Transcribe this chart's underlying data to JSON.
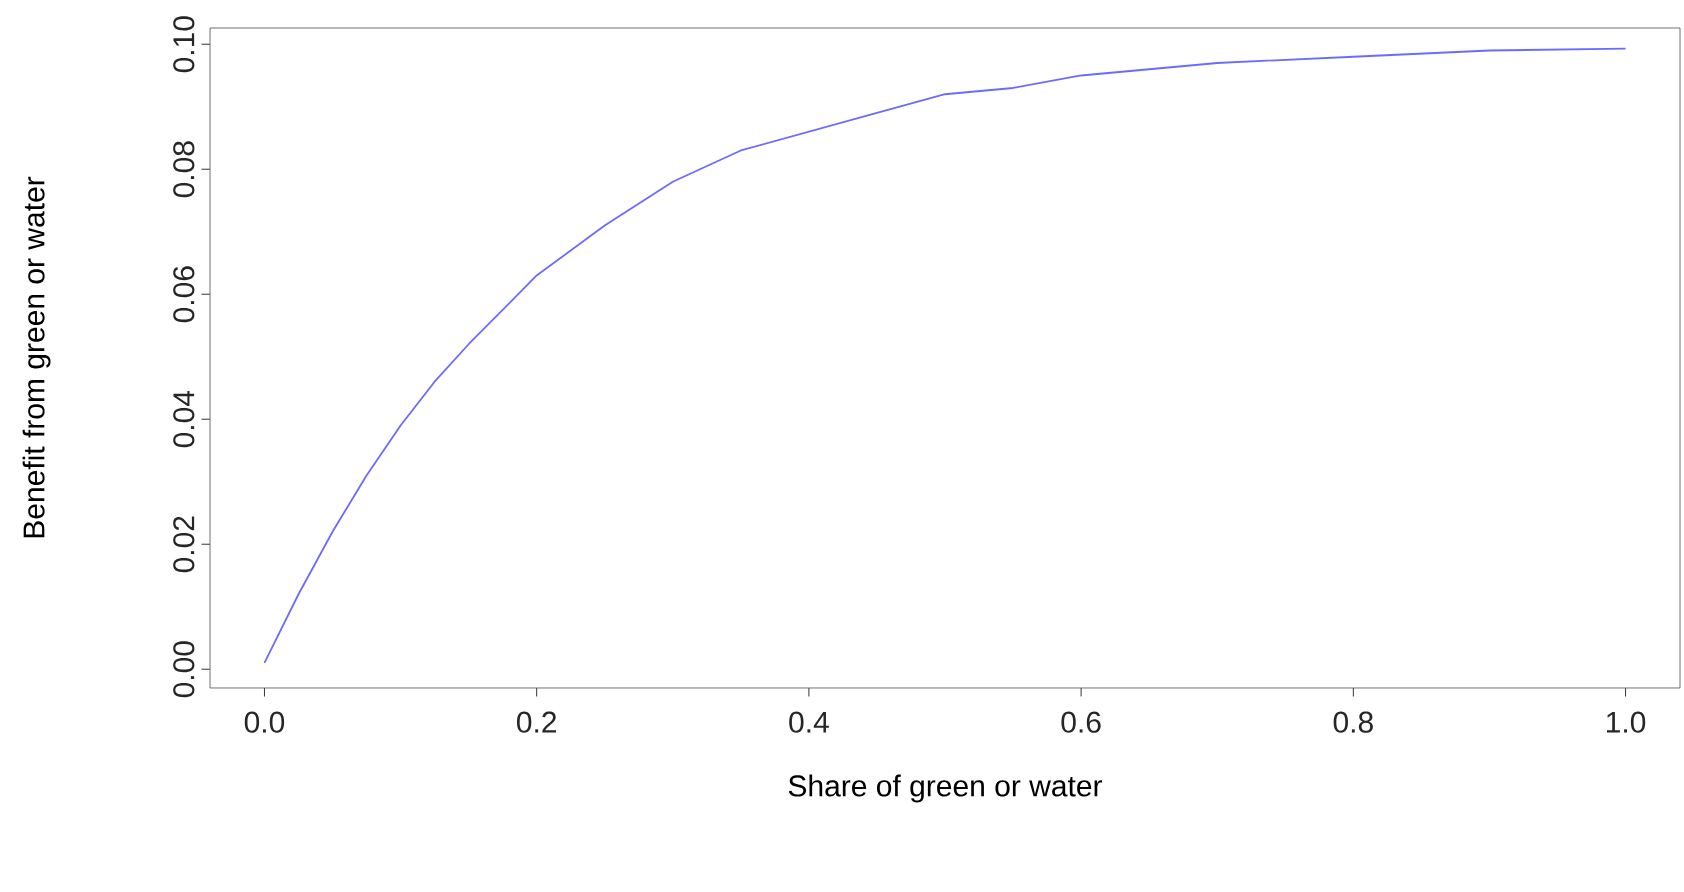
{
  "chart_data": {
    "type": "line",
    "xlabel": "Share of green or water",
    "ylabel": "Benefit from green or water",
    "x": [
      0.0,
      0.025,
      0.05,
      0.075,
      0.1,
      0.125,
      0.15,
      0.2,
      0.25,
      0.3,
      0.35,
      0.4,
      0.45,
      0.5,
      0.55,
      0.6,
      0.7,
      0.8,
      0.9,
      1.0
    ],
    "series": [
      {
        "color": "#6b6bff",
        "values": [
          0.001,
          0.012,
          0.022,
          0.031,
          0.039,
          0.046,
          0.052,
          0.063,
          0.071,
          0.078,
          0.083,
          0.086,
          0.089,
          0.092,
          0.093,
          0.095,
          0.097,
          0.098,
          0.099,
          0.0993
        ]
      }
    ],
    "xlim": [
      -0.04,
      1.04
    ],
    "ylim": [
      -0.003,
      0.1026
    ],
    "xticks": [
      {
        "value": 0,
        "label": "0.0"
      },
      {
        "value": 0.2,
        "label": "0.2"
      },
      {
        "value": 0.4,
        "label": "0.4"
      },
      {
        "value": 0.6,
        "label": "0.6"
      },
      {
        "value": 0.8,
        "label": "0.8"
      },
      {
        "value": 1,
        "label": "1.0"
      }
    ],
    "yticks": [
      {
        "value": 0,
        "label": "0.00"
      },
      {
        "value": 0.02,
        "label": "0.02"
      },
      {
        "value": 0.04,
        "label": "0.04"
      },
      {
        "value": 0.06,
        "label": "0.06"
      },
      {
        "value": 0.08,
        "label": "0.08"
      },
      {
        "value": 0.1,
        "label": "0.10"
      }
    ],
    "marker": "none",
    "line_style": "solid"
  }
}
